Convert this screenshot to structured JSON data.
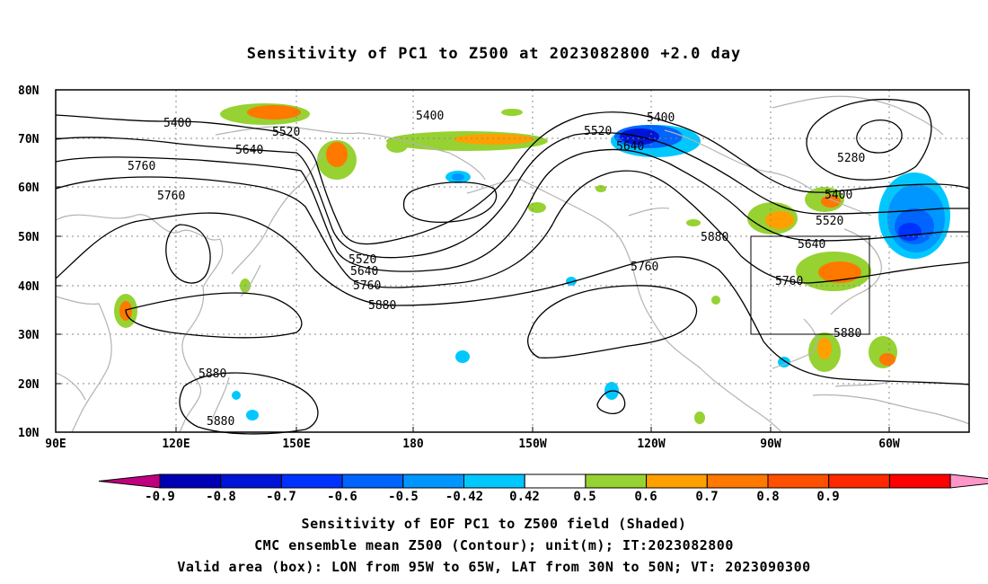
{
  "title": "Sensitivity of PC1 to Z500 at 2023082800 +2.0 day",
  "lat_labels": [
    "80N",
    "70N",
    "60N",
    "50N",
    "40N",
    "30N",
    "20N",
    "10N"
  ],
  "lon_labels": [
    "90E",
    "120E",
    "150E",
    "180",
    "150W",
    "120W",
    "90W",
    "60W"
  ],
  "contour_labels": [
    {
      "text": "5400",
      "key": "a"
    },
    {
      "text": "5400",
      "key": "b"
    },
    {
      "text": "5400",
      "key": "c"
    },
    {
      "text": "5400",
      "key": "d"
    },
    {
      "text": "5520",
      "key": "e"
    },
    {
      "text": "5520",
      "key": "f"
    },
    {
      "text": "5520",
      "key": "g"
    },
    {
      "text": "5520",
      "key": "h"
    },
    {
      "text": "5640",
      "key": "i"
    },
    {
      "text": "5640",
      "key": "j"
    },
    {
      "text": "5640",
      "key": "k"
    },
    {
      "text": "5640",
      "key": "l"
    },
    {
      "text": "5760",
      "key": "m"
    },
    {
      "text": "5760",
      "key": "n"
    },
    {
      "text": "5760",
      "key": "o"
    },
    {
      "text": "5760",
      "key": "p"
    },
    {
      "text": "5760",
      "key": "q"
    },
    {
      "text": "5880",
      "key": "r"
    },
    {
      "text": "5880",
      "key": "s"
    },
    {
      "text": "5880",
      "key": "t"
    },
    {
      "text": "5880",
      "key": "u"
    },
    {
      "text": "5880",
      "key": "v"
    },
    {
      "text": "5280",
      "key": "w"
    }
  ],
  "colorbar": {
    "colors": [
      "#c0007f",
      "#0000b4",
      "#0014d7",
      "#0032ff",
      "#0064ff",
      "#0096ff",
      "#00c8ff",
      "#ffffff",
      "#96d232",
      "#ffa000",
      "#ff7800",
      "#ff5000",
      "#ff2800",
      "#ff0000",
      "#ff96c8"
    ],
    "labels": [
      "-0.9",
      "-0.8",
      "-0.7",
      "-0.6",
      "-0.5",
      "-0.42",
      "0.42",
      "0.5",
      "0.6",
      "0.7",
      "0.8",
      "0.9"
    ]
  },
  "captions": {
    "line1": "Sensitivity of EOF PC1 to Z500 field (Shaded)",
    "line2": "CMC ensemble mean Z500 (Contour); unit(m); IT:2023082800",
    "line3": "Valid area (box): LON from 95W to 65W, LAT from 30N to 50N; VT: 2023090300"
  },
  "valid_area": {
    "lon_from": "95W",
    "lon_to": "65W",
    "lat_from": "30N",
    "lat_to": "50N"
  }
}
